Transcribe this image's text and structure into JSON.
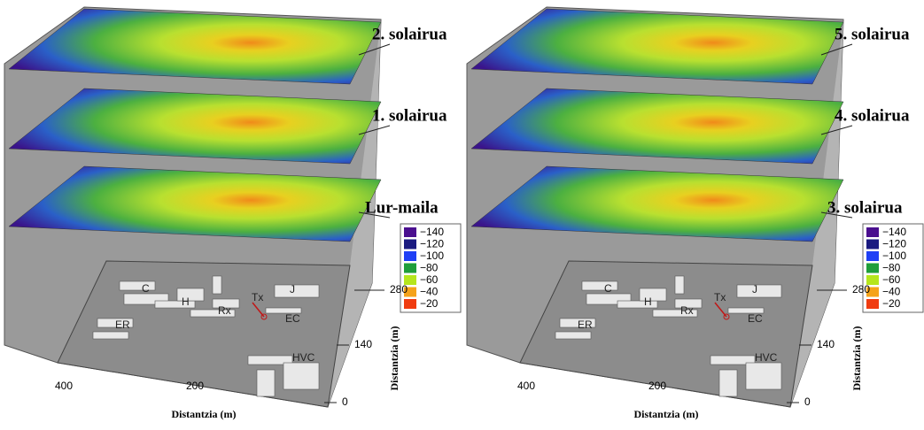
{
  "panels": [
    {
      "layers": [
        "2. solairua",
        "1. solairua",
        "Lur-maila"
      ],
      "legend": [
        {
          "label": "−140",
          "color": "#4a0f8f"
        },
        {
          "label": "−120",
          "color": "#1a1a80"
        },
        {
          "label": "−100",
          "color": "#1f3ff5"
        },
        {
          "label": "−80",
          "color": "#1f9e3a"
        },
        {
          "label": "−60",
          "color": "#b5e61d"
        },
        {
          "label": "−40",
          "color": "#f5a31a"
        },
        {
          "label": "−20",
          "color": "#f03c10"
        }
      ],
      "x_axis_label": "Distantzia (m)",
      "y_axis_label": "Distantzia (m)",
      "x_ticks": [
        "400",
        "200"
      ],
      "y_ticks": [
        "280",
        "140",
        "0"
      ],
      "buildings": [
        "C",
        "H",
        "Rx",
        "ER",
        "J",
        "Tx",
        "EC",
        "HVC"
      ]
    },
    {
      "layers": [
        "5. solairua",
        "4. solairua",
        "3. solairua"
      ],
      "legend": [
        {
          "label": "−140",
          "color": "#4a0f8f"
        },
        {
          "label": "−120",
          "color": "#1a1a80"
        },
        {
          "label": "−100",
          "color": "#1f3ff5"
        },
        {
          "label": "−80",
          "color": "#1f9e3a"
        },
        {
          "label": "−60",
          "color": "#b5e61d"
        },
        {
          "label": "−40",
          "color": "#f5a31a"
        },
        {
          "label": "−20",
          "color": "#f03c10"
        }
      ],
      "x_axis_label": "Distantzia (m)",
      "y_axis_label": "Distantzia (m)",
      "x_ticks": [
        "400",
        "200"
      ],
      "y_ticks": [
        "280",
        "140",
        "0"
      ],
      "buildings": [
        "C",
        "H",
        "Rx",
        "ER",
        "J",
        "Tx",
        "EC",
        "HVC"
      ]
    }
  ]
}
